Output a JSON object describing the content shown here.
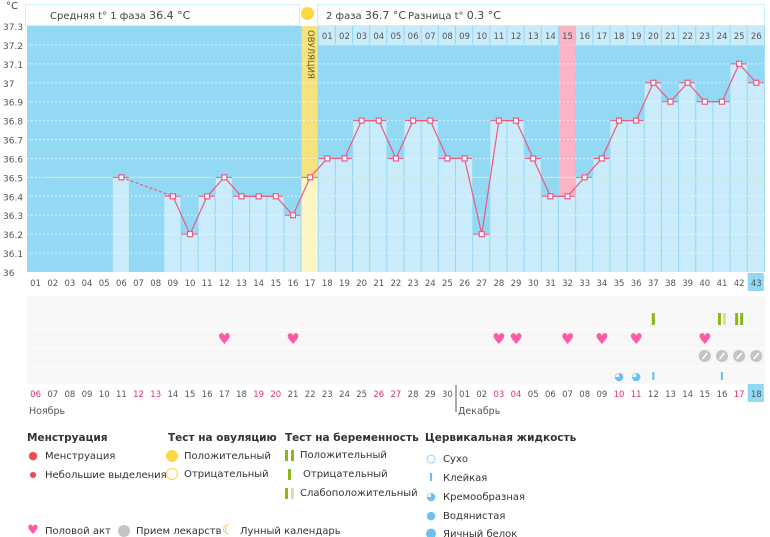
{
  "header": {
    "unit": "°C",
    "phase1_label": "Средняя t° 1 фаза",
    "phase1_value": "36.4 °C",
    "phase2_label": "2 фаза",
    "phase2_value": "36.7 °C",
    "diff_label": "Разница t°",
    "diff_value": "0.3 °C",
    "ovulation_label": "ОВУЛЯЦИЯ"
  },
  "chart_data": {
    "type": "line",
    "ylim": [
      36.0,
      37.3
    ],
    "y_ticks": [
      "36",
      "36.1",
      "36.2",
      "36.3",
      "36.4",
      "36.5",
      "36.6",
      "36.7",
      "36.8",
      "36.9",
      "37",
      "37.1",
      "37.2",
      "37.3"
    ],
    "grid": true,
    "coverline": 36.5,
    "cycle_days": [
      "01",
      "02",
      "03",
      "04",
      "05",
      "06",
      "07",
      "08",
      "09",
      "10",
      "11",
      "12",
      "13",
      "14",
      "15",
      "16",
      "17",
      "18",
      "19",
      "20",
      "21",
      "22",
      "23",
      "24",
      "25",
      "26",
      "27",
      "28",
      "29",
      "30",
      "31",
      "32",
      "33",
      "34",
      "35",
      "36",
      "37",
      "38",
      "39",
      "40",
      "41",
      "42",
      "43"
    ],
    "temperatures": [
      null,
      null,
      null,
      null,
      null,
      36.5,
      null,
      null,
      36.4,
      36.2,
      36.4,
      36.5,
      36.4,
      36.4,
      36.4,
      36.3,
      36.5,
      36.6,
      36.6,
      36.8,
      36.8,
      36.6,
      36.8,
      36.8,
      36.6,
      36.6,
      36.2,
      36.8,
      36.8,
      36.6,
      36.4,
      36.4,
      36.5,
      36.6,
      36.8,
      36.8,
      37.0,
      36.9,
      37.0,
      36.9,
      36.9,
      37.1,
      37.0
    ],
    "ovulation_day": 17,
    "highlight_day": 32,
    "current_day": 43,
    "phase2_day_numbers": [
      "01",
      "02",
      "03",
      "04",
      "05",
      "06",
      "07",
      "08",
      "09",
      "10",
      "11",
      "12",
      "13",
      "14",
      "15",
      "16",
      "17",
      "18",
      "19",
      "20",
      "21",
      "22",
      "23",
      "24",
      "25",
      "26"
    ],
    "dates": [
      "06",
      "07",
      "08",
      "09",
      "10",
      "11",
      "12",
      "13",
      "14",
      "15",
      "16",
      "17",
      "18",
      "19",
      "20",
      "21",
      "22",
      "23",
      "24",
      "25",
      "26",
      "27",
      "28",
      "29",
      "30",
      "01",
      "02",
      "03",
      "04",
      "05",
      "06",
      "07",
      "08",
      "09",
      "10",
      "11",
      "12",
      "13",
      "14",
      "15",
      "16",
      "17",
      "18"
    ],
    "weekend_days": [
      1,
      7,
      8,
      14,
      15,
      21,
      22,
      28,
      29,
      35,
      36,
      42
    ],
    "months": [
      {
        "label": "Ноябрь",
        "start_day": 1
      },
      {
        "label": "Декабрь",
        "start_day": 26
      }
    ],
    "pregnancy_tests": [
      {
        "day": 37,
        "result": "negative"
      },
      {
        "day": 41,
        "result": "weak-positive"
      },
      {
        "day": 42,
        "result": "positive"
      }
    ],
    "intercourse_days": [
      12,
      16,
      28,
      29,
      32,
      34,
      36,
      40
    ],
    "medication_days": [
      40,
      41,
      42,
      43
    ],
    "cervical_fluid": [
      {
        "day": 35,
        "type": "creamy"
      },
      {
        "day": 36,
        "type": "creamy"
      },
      {
        "day": 37,
        "type": "sticky"
      },
      {
        "day": 41,
        "type": "sticky"
      }
    ]
  },
  "colors": {
    "bg": "#93d9f3",
    "bar": "#c9ebfa",
    "line": "#ea5a82",
    "ovulation": "#f6e27f",
    "highlight": "#fbb4c6",
    "weekend": "#e8305a",
    "green": "#8cb816",
    "heart": "#ff5aa8",
    "pill": "#c4c4c4",
    "fluid": "#6cc0ee"
  },
  "legend": {
    "menstruation": {
      "title": "Менструация",
      "items": [
        "Менструация",
        "Небольшие выделения"
      ]
    },
    "ovulation_test": {
      "title": "Тест на овуляцию",
      "items": [
        "Положительный",
        "Отрицательный"
      ]
    },
    "pregnancy_test": {
      "title": "Тест на беременность",
      "items": [
        "Положительный",
        "Отрицательный",
        "Слабоположительный"
      ]
    },
    "cervical_fluid": {
      "title": "Цервикальная жидкость",
      "items": [
        "Сухо",
        "Клейкая",
        "Кремообразная",
        "Водянистая",
        "Яичный белок"
      ]
    },
    "other": [
      "Половой акт",
      "Прием лекарств",
      "Лунный календарь"
    ]
  }
}
